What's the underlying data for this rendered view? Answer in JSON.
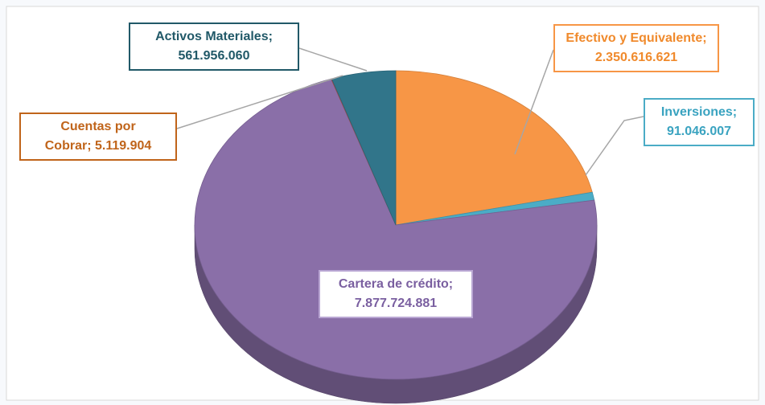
{
  "chart_data": {
    "type": "pie3d",
    "categories": [
      "Efectivo y Equivalente",
      "Inversiones",
      "Cartera de crédito",
      "Cuentas por Cobrar",
      "Activos Materiales"
    ],
    "values": [
      2350616621,
      91046007,
      7877724881,
      5119904,
      561956060
    ],
    "value_labels": [
      "2.350.616.621",
      "91.046.007",
      "7.877.724.881",
      "5.119.904",
      "561.956.060"
    ],
    "label_separator": ";",
    "colors": [
      "#f79646",
      "#4bacc6",
      "#8a6fa8",
      "#c0504d",
      "#31758a"
    ]
  }
}
